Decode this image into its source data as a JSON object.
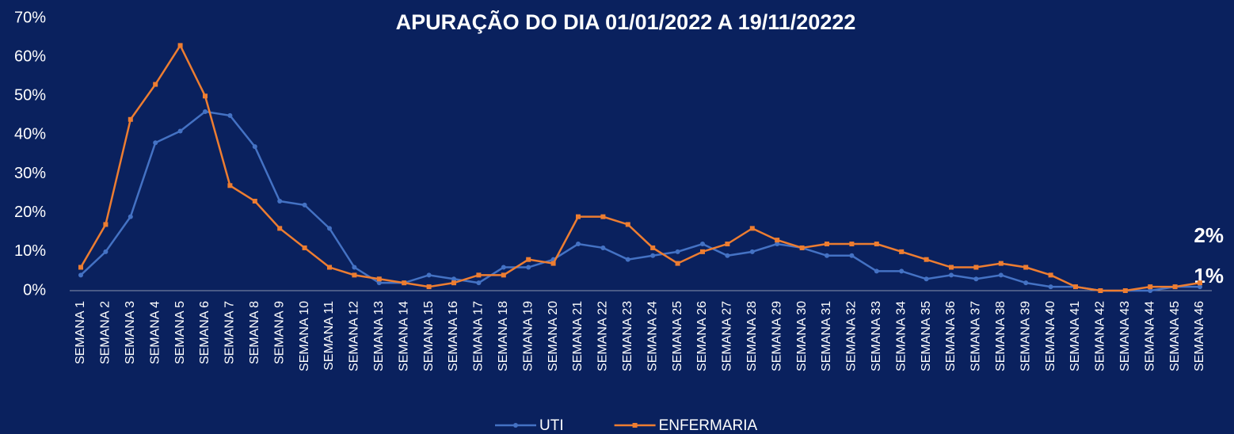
{
  "chart_data": {
    "type": "line",
    "title": "APURAÇÃO DO DIA 01/01/2022 A 19/11/20222",
    "categories": [
      "SEMANA 1",
      "SEMANA 2",
      "SEMANA 3",
      "SEMANA 4",
      "SEMANA 5",
      "SEMANA 6",
      "SEMANA 7",
      "SEMANA 8",
      "SEMANA 9",
      "SEMANA 10",
      "SEMANA 11",
      "SEMANA 12",
      "SEMANA 13",
      "SEMANA 14",
      "SEMANA 15",
      "SEMANA 16",
      "SEMANA 17",
      "SEMANA 18",
      "SEMANA 19",
      "SEMANA 20",
      "SEMANA 21",
      "SEMANA 22",
      "SEMANA 23",
      "SEMANA 24",
      "SEMANA 25",
      "SEMANA 26",
      "SEMANA 27",
      "SEMANA 28",
      "SEMANA 29",
      "SEMANA 30",
      "SEMANA 31",
      "SEMANA 32",
      "SEMANA 33",
      "SEMANA 34",
      "SEMANA 35",
      "SEMANA 36",
      "SEMANA 37",
      "SEMANA 38",
      "SEMANA 39",
      "SEMANA 40",
      "SEMANA 41",
      "SEMANA 42",
      "SEMANA 43",
      "SEMANA 44",
      "SEMANA 45",
      "SEMANA 46"
    ],
    "series": [
      {
        "name": "UTI",
        "color": "#4472c4",
        "marker": "circle",
        "values": [
          4,
          10,
          19,
          38,
          41,
          46,
          45,
          37,
          23,
          22,
          16,
          6,
          2,
          2,
          4,
          3,
          2,
          6,
          6,
          8,
          12,
          11,
          8,
          9,
          10,
          12,
          9,
          10,
          12,
          11,
          9,
          9,
          5,
          5,
          3,
          4,
          3,
          4,
          2,
          1,
          1,
          0,
          0,
          0,
          1,
          1
        ],
        "value_labels": [
          null,
          null,
          null,
          null,
          null,
          null,
          null,
          null,
          null,
          null,
          null,
          null,
          null,
          null,
          null,
          null,
          null,
          null,
          null,
          null,
          null,
          null,
          null,
          null,
          null,
          null,
          null,
          null,
          null,
          null,
          null,
          null,
          null,
          null,
          null,
          null,
          null,
          null,
          null,
          null,
          null,
          null,
          null,
          null,
          null,
          "1%"
        ]
      },
      {
        "name": "ENFERMARIA",
        "color": "#ed7d31",
        "marker": "square",
        "values": [
          6,
          17,
          44,
          53,
          63,
          50,
          27,
          23,
          16,
          11,
          6,
          4,
          3,
          2,
          1,
          2,
          4,
          4,
          8,
          7,
          19,
          19,
          17,
          11,
          7,
          10,
          12,
          16,
          13,
          11,
          12,
          12,
          12,
          10,
          8,
          6,
          6,
          7,
          6,
          4,
          1,
          0,
          0,
          1,
          1,
          2
        ],
        "value_labels": [
          null,
          null,
          null,
          null,
          null,
          null,
          null,
          null,
          null,
          null,
          null,
          null,
          null,
          null,
          null,
          null,
          null,
          null,
          null,
          null,
          null,
          null,
          null,
          null,
          null,
          null,
          null,
          null,
          null,
          null,
          null,
          null,
          null,
          null,
          null,
          null,
          null,
          null,
          null,
          null,
          null,
          null,
          null,
          null,
          null,
          "2%"
        ]
      }
    ],
    "ylim": [
      0,
      70
    ],
    "yticks": [
      {
        "value": 0,
        "label": "0%"
      },
      {
        "value": 10,
        "label": "10%"
      },
      {
        "value": 20,
        "label": "20%"
      },
      {
        "value": 30,
        "label": "30%"
      },
      {
        "value": 40,
        "label": "40%"
      },
      {
        "value": 50,
        "label": "50%"
      },
      {
        "value": 60,
        "label": "60%"
      },
      {
        "value": 70,
        "label": "70%"
      }
    ],
    "grid": false,
    "legend": "bottom"
  }
}
